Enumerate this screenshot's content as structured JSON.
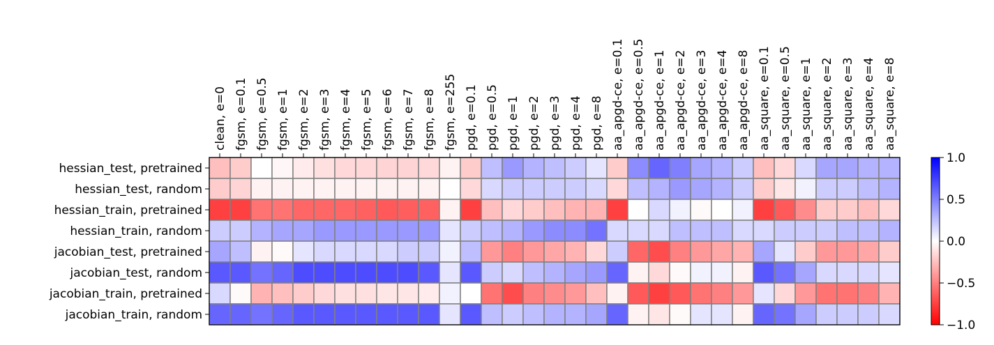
{
  "chart_data": {
    "type": "heatmap",
    "title": "",
    "xlabel": "",
    "ylabel": "",
    "x_categories": [
      "clean, e=0",
      "fgsm, e=0.1",
      "fgsm, e=0.5",
      "fgsm, e=1",
      "fgsm, e=2",
      "fgsm, e=3",
      "fgsm, e=4",
      "fgsm, e=5",
      "fgsm, e=6",
      "fgsm, e=7",
      "fgsm, e=8",
      "fgsm, e=255",
      "pgd, e=0.1",
      "pgd, e=0.5",
      "pgd, e=1",
      "pgd, e=2",
      "pgd, e=3",
      "pgd, e=4",
      "pgd, e=8",
      "aa_apgd-ce, e=0.1",
      "aa_apgd-ce, e=0.5",
      "aa_apgd-ce, e=1",
      "aa_apgd-ce, e=2",
      "aa_apgd-ce, e=3",
      "aa_apgd-ce, e=4",
      "aa_apgd-ce, e=8",
      "aa_square, e=0.1",
      "aa_square, e=0.5",
      "aa_square, e=1",
      "aa_square, e=2",
      "aa_square, e=3",
      "aa_square, e=4",
      "aa_square, e=8"
    ],
    "y_categories": [
      "hessian_test, pretrained",
      "hessian_test, random",
      "hessian_train, pretrained",
      "hessian_train, random",
      "jacobian_test, pretrained",
      "jacobian_test, random",
      "jacobian_train, pretrained",
      "jacobian_train, random"
    ],
    "values": [
      [
        -0.25,
        -0.2,
        0.0,
        -0.03,
        -0.08,
        -0.12,
        -0.15,
        -0.15,
        -0.17,
        -0.17,
        -0.15,
        -0.05,
        -0.2,
        0.25,
        0.4,
        0.3,
        0.25,
        0.2,
        0.1,
        -0.2,
        0.45,
        0.6,
        0.5,
        0.35,
        0.3,
        0.2,
        -0.25,
        -0.15,
        0.15,
        0.35,
        0.35,
        0.3,
        0.3
      ],
      [
        -0.2,
        -0.17,
        -0.05,
        -0.05,
        -0.05,
        -0.05,
        -0.05,
        -0.05,
        -0.05,
        -0.05,
        -0.05,
        0.0,
        -0.15,
        0.15,
        0.2,
        0.2,
        0.2,
        0.2,
        0.15,
        -0.15,
        0.25,
        0.3,
        0.4,
        0.35,
        0.3,
        0.2,
        -0.2,
        -0.1,
        0.05,
        0.2,
        0.2,
        0.25,
        0.3
      ],
      [
        -0.75,
        -0.75,
        -0.55,
        -0.55,
        -0.6,
        -0.6,
        -0.6,
        -0.62,
        -0.65,
        -0.63,
        -0.62,
        -0.05,
        -0.75,
        -0.25,
        -0.15,
        -0.2,
        -0.25,
        -0.3,
        -0.3,
        -0.75,
        0.0,
        0.15,
        0.05,
        -0.02,
        0.0,
        0.05,
        -0.75,
        -0.65,
        -0.45,
        -0.2,
        -0.2,
        -0.25,
        -0.15
      ],
      [
        0.2,
        0.2,
        0.3,
        0.35,
        0.35,
        0.4,
        0.4,
        0.4,
        0.4,
        0.4,
        0.4,
        0.1,
        0.2,
        0.25,
        0.3,
        0.4,
        0.45,
        0.45,
        0.55,
        0.15,
        0.15,
        0.15,
        0.25,
        0.25,
        0.25,
        0.15,
        0.15,
        0.2,
        0.2,
        0.2,
        0.25,
        0.25,
        0.3
      ],
      [
        0.35,
        0.25,
        -0.05,
        -0.02,
        0.1,
        0.15,
        0.15,
        0.15,
        0.15,
        0.2,
        0.2,
        0.05,
        0.25,
        -0.4,
        -0.5,
        -0.4,
        -0.35,
        -0.3,
        -0.15,
        0.2,
        -0.6,
        -0.7,
        -0.5,
        -0.4,
        -0.35,
        -0.3,
        0.35,
        0.1,
        -0.2,
        -0.4,
        -0.4,
        -0.35,
        -0.2
      ],
      [
        0.65,
        0.65,
        0.55,
        0.6,
        0.7,
        0.7,
        0.7,
        0.7,
        0.7,
        0.7,
        0.65,
        0.1,
        0.65,
        0.2,
        0.15,
        0.25,
        0.3,
        0.35,
        0.4,
        0.6,
        -0.05,
        -0.15,
        -0.02,
        0.05,
        0.05,
        -0.05,
        0.65,
        0.55,
        0.35,
        0.15,
        0.15,
        0.15,
        0.1
      ],
      [
        0.15,
        -0.02,
        -0.3,
        -0.25,
        -0.2,
        -0.15,
        -0.12,
        -0.12,
        -0.1,
        -0.1,
        -0.08,
        0.05,
        0.0,
        -0.55,
        -0.7,
        -0.5,
        -0.45,
        -0.4,
        -0.25,
        -0.05,
        -0.65,
        -0.75,
        -0.65,
        -0.55,
        -0.5,
        -0.4,
        0.1,
        -0.15,
        -0.4,
        -0.55,
        -0.55,
        -0.5,
        -0.3
      ],
      [
        0.6,
        0.6,
        0.55,
        0.6,
        0.65,
        0.65,
        0.65,
        0.65,
        0.65,
        0.65,
        0.65,
        0.1,
        0.65,
        0.25,
        0.2,
        0.25,
        0.3,
        0.3,
        0.35,
        0.6,
        -0.05,
        -0.1,
        -0.02,
        0.1,
        0.1,
        -0.05,
        0.6,
        0.55,
        0.35,
        0.2,
        0.2,
        0.2,
        0.15
      ]
    ],
    "vmin": -1.0,
    "vmax": 1.0,
    "colormap": [
      "#ff0000",
      "#ffffff",
      "#0000ff"
    ],
    "colorbar": {
      "ticks": [
        1.0,
        0.5,
        0.0,
        -0.5,
        -1.0
      ],
      "tick_labels": [
        "1.0",
        "0.5",
        "0.0",
        "−0.5",
        "−1.0"
      ]
    },
    "grid_color": "#808080",
    "grid": true
  }
}
